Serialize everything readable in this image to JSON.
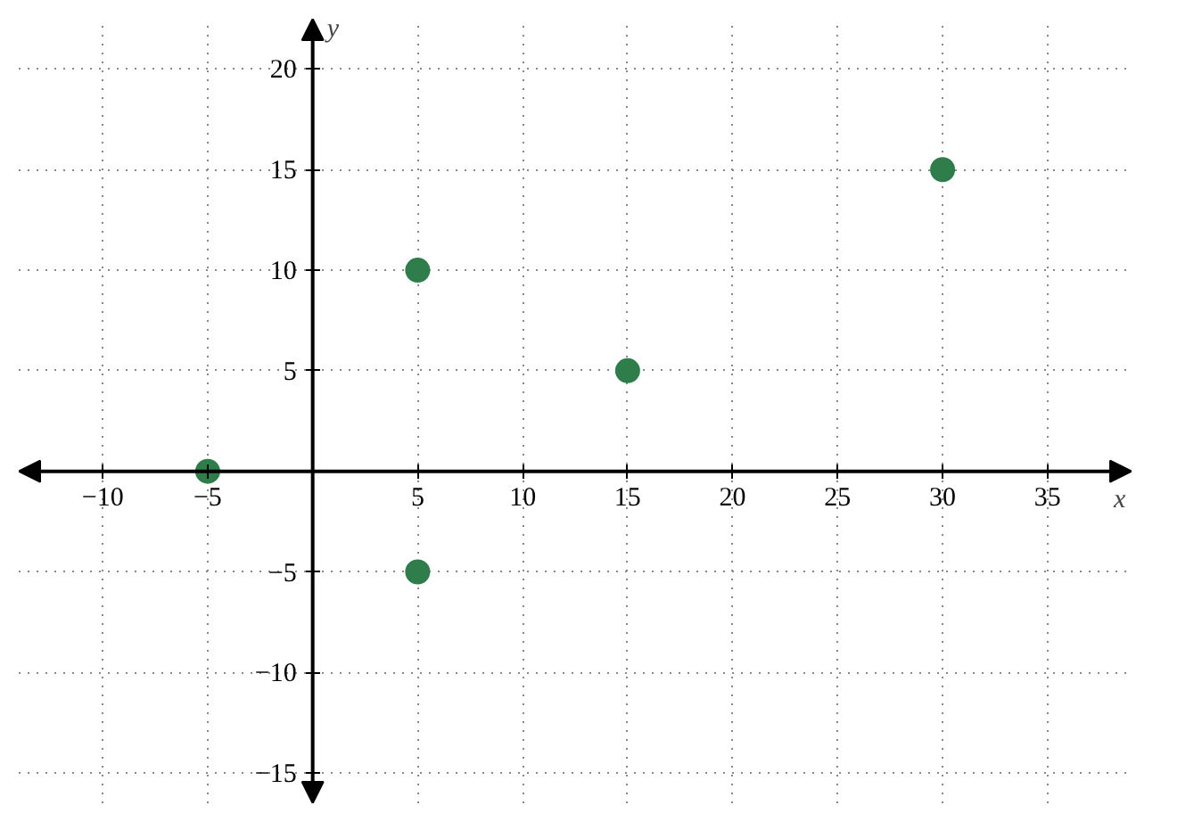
{
  "chart_data": {
    "type": "scatter",
    "xlabel": "x",
    "ylabel": "y",
    "x": [
      -5,
      5,
      5,
      15,
      30
    ],
    "series": [
      {
        "color": "#2e7d4a",
        "values": [
          0,
          10,
          -5,
          5,
          15
        ]
      }
    ],
    "xlim": [
      -14,
      39
    ],
    "ylim": [
      -16.5,
      22.5
    ],
    "xticks": [
      {
        "value": -10,
        "label": "−10"
      },
      {
        "value": -5,
        "label": "−5"
      },
      5,
      10,
      15,
      20,
      25,
      30,
      35
    ],
    "yticks": [
      {
        "value": -15,
        "label": "−15"
      },
      {
        "value": -10,
        "label": "−10"
      },
      {
        "value": -5,
        "label": "−5"
      },
      5,
      10,
      15,
      20
    ],
    "grid": true,
    "marker": "circle"
  }
}
